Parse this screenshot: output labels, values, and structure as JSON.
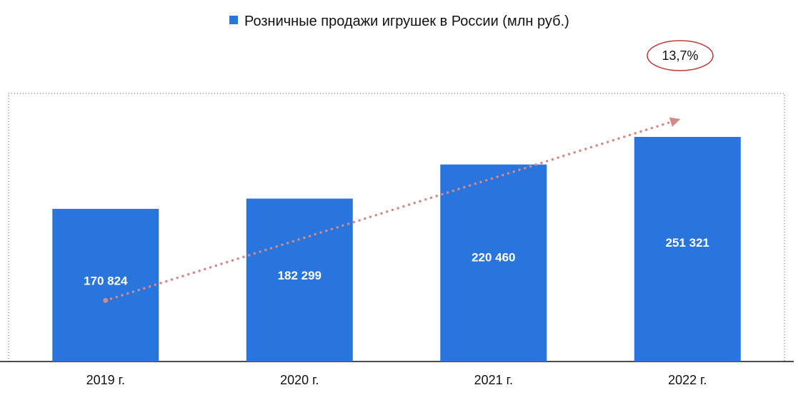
{
  "chart_data": {
    "type": "bar",
    "categories": [
      "2019 г.",
      "2020 г.",
      "2021 г.",
      "2022 г."
    ],
    "series": [
      {
        "name": "Розничные продажи игрушек в России (млн руб.)",
        "values": [
          170824,
          182299,
          220460,
          251321
        ],
        "value_labels": [
          "170 824",
          "182 299",
          "220 460",
          "251 321"
        ],
        "color": "#2a75dd"
      }
    ],
    "ylim": [
      0,
      300000
    ],
    "grid": false,
    "legend_position": "top-center",
    "annotation": {
      "text": "13,7%",
      "outline_color": "#c0393b"
    },
    "trend_arrow_color": "#d28a86",
    "axis_color": "#111111",
    "frame_color": "#555555"
  }
}
